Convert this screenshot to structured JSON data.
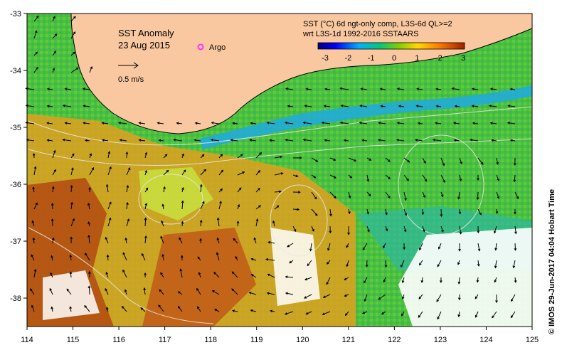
{
  "map": {
    "title": "SST Anomaly",
    "date": "23 Aug 2015",
    "argo_label": "Argo",
    "scale_arrow_label": "0.5 m/s",
    "legend_line1": "SST (°C) 6d ngt-only comp, L3S-6d QL>=2",
    "legend_line2": "wrt L3S-1d 1992-2016 SSTAARS",
    "credit": "©  IMOS 29-Jun-2017 04:04 Hobart Time",
    "colorbar_ticks": [
      "-3",
      "-2",
      "-1",
      "0",
      "1",
      "2",
      "3"
    ],
    "colorbar_range": [
      -3,
      3
    ],
    "x_ticks": [
      "114",
      "115",
      "116",
      "117",
      "118",
      "119",
      "120",
      "121",
      "122",
      "123",
      "124",
      "125"
    ],
    "y_ticks": [
      "-33",
      "-34",
      "-35",
      "-36",
      "-37",
      "-38"
    ],
    "lon_range": [
      114,
      125
    ],
    "lat_range": [
      -38.5,
      -33
    ],
    "colors": {
      "land": "#f9c8a0",
      "ocean_base": "#3fbf3f",
      "argo": "#ff33ff"
    }
  }
}
